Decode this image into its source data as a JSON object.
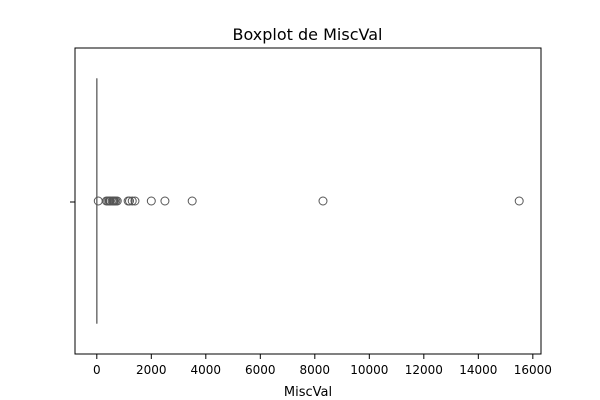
{
  "chart_data": {
    "type": "box",
    "title": "Boxplot de MiscVal",
    "xlabel": "MiscVal",
    "ylabel": "",
    "xlim": [
      -800,
      16300
    ],
    "xticks": [
      0,
      2000,
      4000,
      6000,
      8000,
      10000,
      12000,
      14000,
      16000
    ],
    "xtick_labels": [
      "0",
      "2000",
      "4000",
      "6000",
      "8000",
      "10000",
      "12000",
      "14000",
      "16000"
    ],
    "box": {
      "min": 0,
      "q1": 0,
      "median": 0,
      "q3": 0,
      "max": 0
    },
    "outliers": [
      54,
      350,
      400,
      450,
      480,
      500,
      560,
      600,
      620,
      650,
      700,
      750,
      1150,
      1200,
      1300,
      1400,
      2000,
      2500,
      3500,
      8300,
      15500
    ],
    "grid": false,
    "legend": "none",
    "colors": {
      "box": "#7a7a7a",
      "outlier_edge": "#555555",
      "axes": "#000000"
    }
  }
}
